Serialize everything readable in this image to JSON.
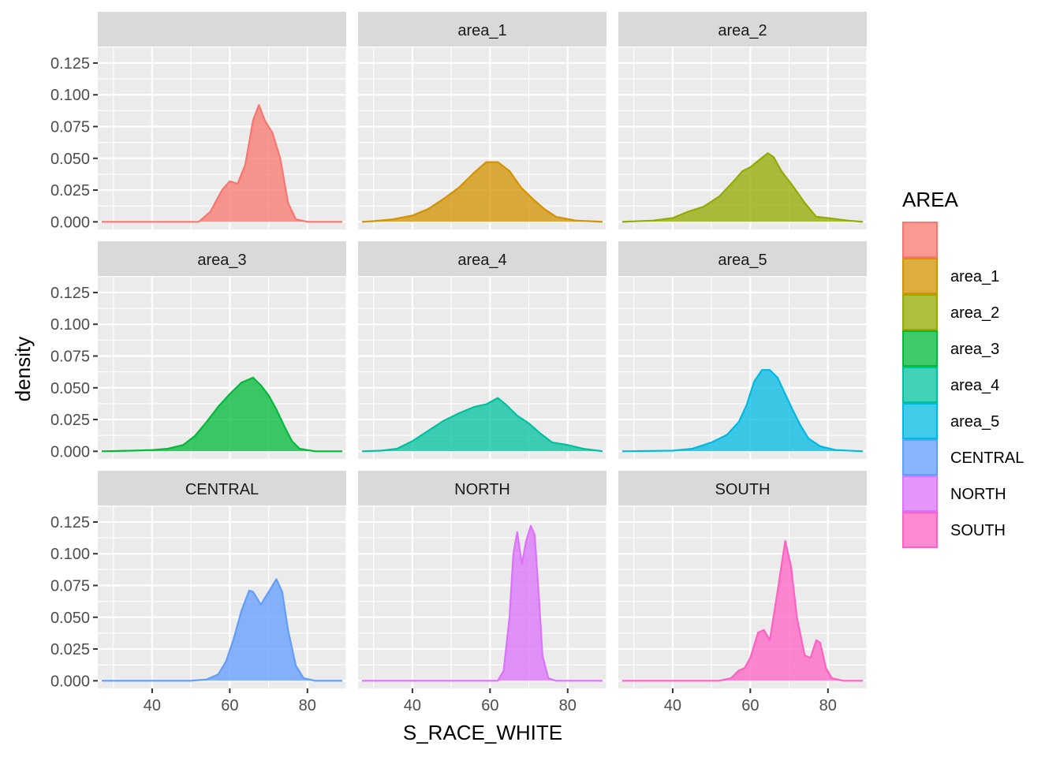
{
  "chart_data": {
    "type": "area",
    "subtype": "density-facets",
    "title": "",
    "xlabel": "S_RACE_WHITE",
    "ylabel": "density",
    "xlim": [
      26,
      90
    ],
    "ylim": [
      -0.006,
      0.138
    ],
    "x_ticks": [
      40,
      60,
      80
    ],
    "y_ticks": [
      0,
      0.025,
      0.05,
      0.075,
      0.1,
      0.125
    ],
    "y_tick_labels": [
      "0.000",
      "0.025",
      "0.050",
      "0.075",
      "0.100",
      "0.125"
    ],
    "grid": true,
    "facet_layout": {
      "rows": 3,
      "cols": 3
    },
    "legend": {
      "title": "AREA",
      "position": "right"
    },
    "series": [
      {
        "name": "",
        "strip": "",
        "color": "#F8766D",
        "points": [
          [
            27,
            0
          ],
          [
            52,
            0
          ],
          [
            55,
            0.008
          ],
          [
            58,
            0.025
          ],
          [
            60,
            0.032
          ],
          [
            62,
            0.03
          ],
          [
            64,
            0.045
          ],
          [
            66,
            0.08
          ],
          [
            67.5,
            0.092
          ],
          [
            69,
            0.08
          ],
          [
            71,
            0.07
          ],
          [
            73,
            0.05
          ],
          [
            75,
            0.015
          ],
          [
            77,
            0.002
          ],
          [
            80,
            0
          ],
          [
            89,
            0
          ]
        ]
      },
      {
        "name": "area_1",
        "strip": "area_1",
        "color": "#D39200",
        "points": [
          [
            27,
            0
          ],
          [
            30,
            0.0005
          ],
          [
            35,
            0.002
          ],
          [
            40,
            0.005
          ],
          [
            44,
            0.01
          ],
          [
            48,
            0.018
          ],
          [
            52,
            0.027
          ],
          [
            56,
            0.039
          ],
          [
            59,
            0.047
          ],
          [
            62,
            0.047
          ],
          [
            65,
            0.04
          ],
          [
            68,
            0.027
          ],
          [
            71,
            0.018
          ],
          [
            74,
            0.01
          ],
          [
            77,
            0.004
          ],
          [
            82,
            0.001
          ],
          [
            89,
            0
          ]
        ]
      },
      {
        "name": "area_2",
        "strip": "area_2",
        "color": "#93AA00",
        "points": [
          [
            27,
            0
          ],
          [
            35,
            0.001
          ],
          [
            40,
            0.003
          ],
          [
            44,
            0.008
          ],
          [
            48,
            0.012
          ],
          [
            52,
            0.02
          ],
          [
            56,
            0.033
          ],
          [
            58,
            0.04
          ],
          [
            60,
            0.043
          ],
          [
            62,
            0.048
          ],
          [
            64.5,
            0.054
          ],
          [
            66,
            0.051
          ],
          [
            68,
            0.04
          ],
          [
            71,
            0.028
          ],
          [
            74,
            0.015
          ],
          [
            77,
            0.004
          ],
          [
            80,
            0.003
          ],
          [
            85,
            0.001
          ],
          [
            89,
            0
          ]
        ]
      },
      {
        "name": "area_3",
        "strip": "area_3",
        "color": "#00BA38",
        "points": [
          [
            27,
            0
          ],
          [
            35,
            0.0005
          ],
          [
            40,
            0.001
          ],
          [
            44,
            0.002
          ],
          [
            48,
            0.005
          ],
          [
            51,
            0.012
          ],
          [
            54,
            0.023
          ],
          [
            57,
            0.035
          ],
          [
            60,
            0.045
          ],
          [
            63,
            0.054
          ],
          [
            66,
            0.058
          ],
          [
            68,
            0.052
          ],
          [
            70,
            0.044
          ],
          [
            72,
            0.033
          ],
          [
            74,
            0.02
          ],
          [
            76,
            0.008
          ],
          [
            78,
            0.002
          ],
          [
            82,
            0
          ],
          [
            89,
            0
          ]
        ]
      },
      {
        "name": "area_4",
        "strip": "area_4",
        "color": "#00C19F",
        "points": [
          [
            27,
            0
          ],
          [
            32,
            0.0005
          ],
          [
            36,
            0.002
          ],
          [
            40,
            0.008
          ],
          [
            44,
            0.016
          ],
          [
            48,
            0.024
          ],
          [
            52,
            0.03
          ],
          [
            56,
            0.035
          ],
          [
            59,
            0.037
          ],
          [
            62,
            0.042
          ],
          [
            64,
            0.037
          ],
          [
            67,
            0.028
          ],
          [
            70,
            0.022
          ],
          [
            73,
            0.014
          ],
          [
            76,
            0.007
          ],
          [
            80,
            0.005
          ],
          [
            84,
            0.002
          ],
          [
            89,
            0
          ]
        ]
      },
      {
        "name": "area_5",
        "strip": "area_5",
        "color": "#00B9E3",
        "points": [
          [
            27,
            0
          ],
          [
            40,
            0.0005
          ],
          [
            45,
            0.002
          ],
          [
            50,
            0.007
          ],
          [
            54,
            0.013
          ],
          [
            57,
            0.023
          ],
          [
            59,
            0.036
          ],
          [
            61,
            0.055
          ],
          [
            63,
            0.064
          ],
          [
            65,
            0.064
          ],
          [
            67,
            0.058
          ],
          [
            69,
            0.045
          ],
          [
            71,
            0.032
          ],
          [
            73,
            0.02
          ],
          [
            75,
            0.01
          ],
          [
            78,
            0.004
          ],
          [
            82,
            0.001
          ],
          [
            89,
            0
          ]
        ]
      },
      {
        "name": "CENTRAL",
        "strip": "CENTRAL",
        "color": "#619CFF",
        "points": [
          [
            27,
            0
          ],
          [
            50,
            0
          ],
          [
            54,
            0.001
          ],
          [
            57,
            0.005
          ],
          [
            59,
            0.015
          ],
          [
            61,
            0.033
          ],
          [
            63,
            0.055
          ],
          [
            65,
            0.071
          ],
          [
            66,
            0.07
          ],
          [
            68,
            0.06
          ],
          [
            70,
            0.07
          ],
          [
            72,
            0.08
          ],
          [
            73.5,
            0.07
          ],
          [
            75,
            0.04
          ],
          [
            77,
            0.012
          ],
          [
            79,
            0.002
          ],
          [
            82,
            0
          ],
          [
            89,
            0
          ]
        ]
      },
      {
        "name": "NORTH",
        "strip": "NORTH",
        "color": "#DB72FB",
        "points": [
          [
            27,
            0
          ],
          [
            62,
            0
          ],
          [
            63.5,
            0.008
          ],
          [
            65,
            0.05
          ],
          [
            66,
            0.1
          ],
          [
            67,
            0.117
          ],
          [
            68.2,
            0.092
          ],
          [
            69.3,
            0.11
          ],
          [
            70.5,
            0.122
          ],
          [
            71.5,
            0.115
          ],
          [
            72.5,
            0.07
          ],
          [
            73.5,
            0.02
          ],
          [
            75,
            0.002
          ],
          [
            77,
            0
          ],
          [
            89,
            0
          ]
        ]
      },
      {
        "name": "SOUTH",
        "strip": "SOUTH",
        "color": "#FF61C3",
        "points": [
          [
            27,
            0
          ],
          [
            52,
            0
          ],
          [
            55,
            0.002
          ],
          [
            57,
            0.008
          ],
          [
            58.5,
            0.01
          ],
          [
            60,
            0.018
          ],
          [
            62,
            0.038
          ],
          [
            63.5,
            0.04
          ],
          [
            65,
            0.032
          ],
          [
            67,
            0.07
          ],
          [
            69,
            0.11
          ],
          [
            70.5,
            0.09
          ],
          [
            72,
            0.05
          ],
          [
            74,
            0.02
          ],
          [
            75.5,
            0.018
          ],
          [
            77,
            0.032
          ],
          [
            78,
            0.03
          ],
          [
            79.5,
            0.01
          ],
          [
            81,
            0.002
          ],
          [
            84,
            0
          ],
          [
            89,
            0
          ]
        ]
      }
    ]
  }
}
